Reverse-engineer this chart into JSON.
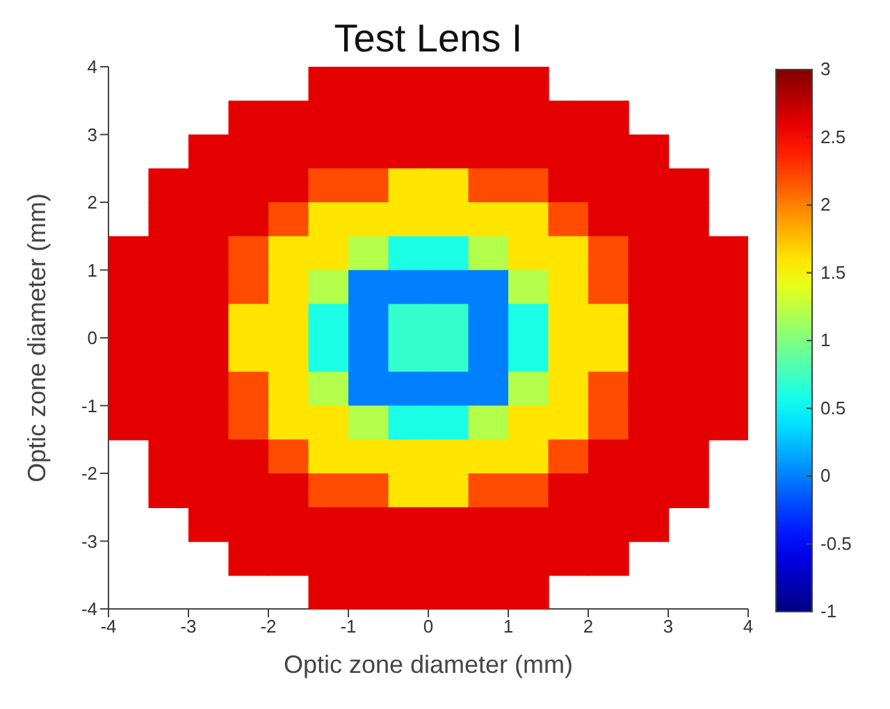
{
  "chart_data": {
    "type": "heatmap",
    "title": "Test Lens I",
    "xlabel": "Optic zone diameter (mm)",
    "ylabel": "Optic zone diameter (mm)",
    "xlim": [
      -4,
      4
    ],
    "xticks": [
      -4,
      -3,
      -2,
      -1,
      0,
      1,
      2,
      3,
      4
    ],
    "ylim": [
      -4,
      4
    ],
    "yticks": [
      -4,
      -3,
      -2,
      -1,
      0,
      1,
      2,
      3,
      4
    ],
    "clim": [
      -1,
      3
    ],
    "cticks": [
      -1,
      -0.5,
      0,
      0.5,
      1,
      1.5,
      2,
      2.5,
      3
    ],
    "cells": [
      [
        null,
        null,
        null,
        null,
        null,
        2.6,
        2.6,
        2.6,
        2.6,
        2.6,
        2.6,
        null,
        null,
        null,
        null,
        null
      ],
      [
        null,
        null,
        null,
        2.6,
        2.6,
        2.6,
        2.6,
        2.6,
        2.6,
        2.6,
        2.6,
        2.6,
        2.6,
        null,
        null,
        null
      ],
      [
        null,
        null,
        2.6,
        2.6,
        2.6,
        2.6,
        2.6,
        2.6,
        2.6,
        2.6,
        2.6,
        2.6,
        2.6,
        2.6,
        null,
        null
      ],
      [
        null,
        2.6,
        2.6,
        2.6,
        2.6,
        2.2,
        2.2,
        1.6,
        1.6,
        2.2,
        2.2,
        2.6,
        2.6,
        2.6,
        2.6,
        null
      ],
      [
        null,
        2.6,
        2.6,
        2.6,
        2.2,
        1.6,
        1.6,
        1.6,
        1.6,
        1.6,
        1.6,
        2.2,
        2.6,
        2.6,
        2.6,
        null
      ],
      [
        2.6,
        2.6,
        2.6,
        2.2,
        1.6,
        1.6,
        1.2,
        0.6,
        0.6,
        1.2,
        1.6,
        1.6,
        2.2,
        2.6,
        2.6,
        2.6
      ],
      [
        2.6,
        2.6,
        2.6,
        2.2,
        1.6,
        1.2,
        0.0,
        0.0,
        0.0,
        0.0,
        1.2,
        1.6,
        2.2,
        2.6,
        2.6,
        2.6
      ],
      [
        2.6,
        2.6,
        2.6,
        1.6,
        1.6,
        0.6,
        0.0,
        0.7,
        0.7,
        0.0,
        0.6,
        1.6,
        1.6,
        2.6,
        2.6,
        2.6
      ],
      [
        2.6,
        2.6,
        2.6,
        1.6,
        1.6,
        0.6,
        0.0,
        0.7,
        0.7,
        0.0,
        0.6,
        1.6,
        1.6,
        2.6,
        2.6,
        2.6
      ],
      [
        2.6,
        2.6,
        2.6,
        2.2,
        1.6,
        1.2,
        0.0,
        0.0,
        0.0,
        0.0,
        1.2,
        1.6,
        2.2,
        2.6,
        2.6,
        2.6
      ],
      [
        2.6,
        2.6,
        2.6,
        2.2,
        1.6,
        1.6,
        1.2,
        0.6,
        0.6,
        1.2,
        1.6,
        1.6,
        2.2,
        2.6,
        2.6,
        2.6
      ],
      [
        null,
        2.6,
        2.6,
        2.6,
        2.2,
        1.6,
        1.6,
        1.6,
        1.6,
        1.6,
        1.6,
        2.2,
        2.6,
        2.6,
        2.6,
        null
      ],
      [
        null,
        2.6,
        2.6,
        2.6,
        2.6,
        2.2,
        2.2,
        1.6,
        1.6,
        2.2,
        2.2,
        2.6,
        2.6,
        2.6,
        2.6,
        null
      ],
      [
        null,
        null,
        2.6,
        2.6,
        2.6,
        2.6,
        2.6,
        2.6,
        2.6,
        2.6,
        2.6,
        2.6,
        2.6,
        2.6,
        null,
        null
      ],
      [
        null,
        null,
        null,
        2.6,
        2.6,
        2.6,
        2.6,
        2.6,
        2.6,
        2.6,
        2.6,
        2.6,
        2.6,
        null,
        null,
        null
      ],
      [
        null,
        null,
        null,
        null,
        null,
        2.6,
        2.6,
        2.6,
        2.6,
        2.6,
        2.6,
        null,
        null,
        null,
        null,
        null
      ]
    ]
  }
}
